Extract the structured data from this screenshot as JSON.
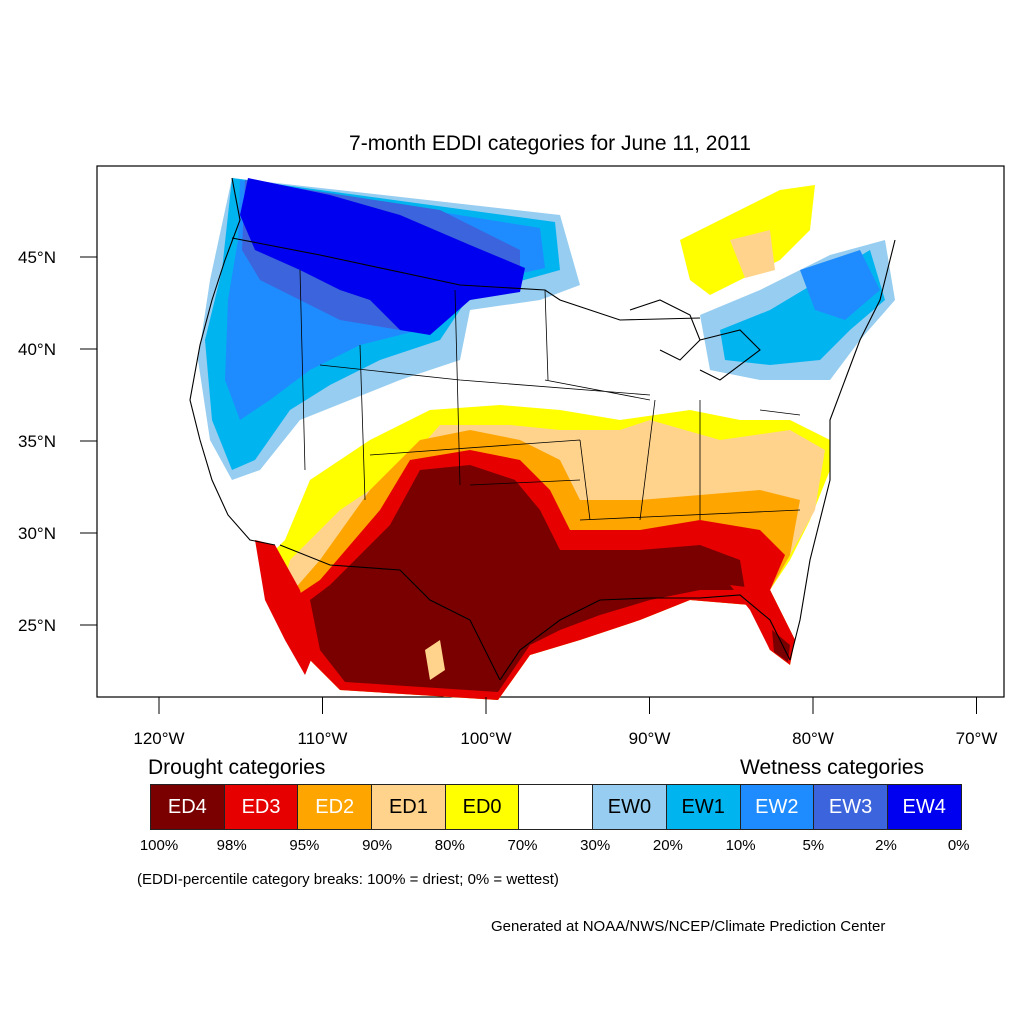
{
  "title": "7-month EDDI categories for June 11, 2011",
  "lat_ticks": [
    {
      "value": 45,
      "label": "45°N"
    },
    {
      "value": 40,
      "label": "40°N"
    },
    {
      "value": 35,
      "label": "35°N"
    },
    {
      "value": 30,
      "label": "30°N"
    },
    {
      "value": 25,
      "label": "25°N"
    }
  ],
  "lon_ticks": [
    {
      "value": -120,
      "label": "120°W"
    },
    {
      "value": -110,
      "label": "110°W"
    },
    {
      "value": -100,
      "label": "100°W"
    },
    {
      "value": -90,
      "label": "90°W"
    },
    {
      "value": -80,
      "label": "80°W"
    },
    {
      "value": -70,
      "label": "70°W"
    }
  ],
  "legend": {
    "drought_heading": "Drought categories",
    "wetness_heading": "Wetness categories",
    "categories": [
      {
        "label": "ED4",
        "color": "#7a0000",
        "text_color": "#ffffff"
      },
      {
        "label": "ED3",
        "color": "#e60000",
        "text_color": "#ffffff"
      },
      {
        "label": "ED2",
        "color": "#ffa500",
        "text_color": "#ffffff"
      },
      {
        "label": "ED1",
        "color": "#ffd38c",
        "text_color": "#000000"
      },
      {
        "label": "ED0",
        "color": "#ffff00",
        "text_color": "#000000"
      },
      {
        "label": "",
        "color": "#ffffff",
        "text_color": "#000000"
      },
      {
        "label": "EW0",
        "color": "#96cdf0",
        "text_color": "#000000"
      },
      {
        "label": "EW1",
        "color": "#00b4f0",
        "text_color": "#000000"
      },
      {
        "label": "EW2",
        "color": "#1e8cff",
        "text_color": "#ffffff"
      },
      {
        "label": "EW3",
        "color": "#3c64dc",
        "text_color": "#ffffff"
      },
      {
        "label": "EW4",
        "color": "#0000f0",
        "text_color": "#ffffff"
      }
    ],
    "breaks": [
      "100%",
      "98%",
      "95%",
      "90%",
      "80%",
      "70%",
      "30%",
      "20%",
      "10%",
      "5%",
      "2%",
      "0%"
    ]
  },
  "note": "(EDDI-percentile category breaks: 100% = driest; 0% = wettest)",
  "credit": "Generated at NOAA/NWS/NCEP/Climate Prediction Center"
}
